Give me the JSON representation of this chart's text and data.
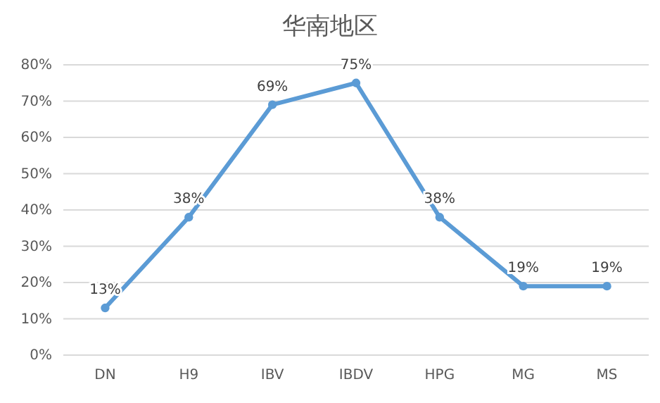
{
  "chart_data": {
    "type": "line",
    "title": "华南地区",
    "categories": [
      "DN",
      "H9",
      "IBV",
      "IBDV",
      "HPG",
      "MG",
      "MS"
    ],
    "series": [
      {
        "color": "#5b9bd5",
        "values": [
          13,
          38,
          69,
          75,
          38,
          19,
          19
        ],
        "value_labels": [
          "13%",
          "38%",
          "69%",
          "75%",
          "38%",
          "19%",
          "19%"
        ]
      }
    ],
    "ylim": [
      0,
      80
    ],
    "yticks": [
      {
        "value": 0,
        "label": "0%"
      },
      {
        "value": 10,
        "label": "10%"
      },
      {
        "value": 20,
        "label": "20%"
      },
      {
        "value": 30,
        "label": "30%"
      },
      {
        "value": 40,
        "label": "40%"
      },
      {
        "value": 50,
        "label": "50%"
      },
      {
        "value": 60,
        "label": "60%"
      },
      {
        "value": 70,
        "label": "70%"
      },
      {
        "value": 80,
        "label": "80%"
      }
    ],
    "grid": "y",
    "marker": "circle",
    "line_style": "solid"
  }
}
